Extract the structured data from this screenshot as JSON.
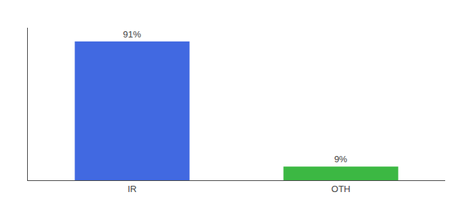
{
  "chart_data": {
    "type": "bar",
    "categories": [
      "IR",
      "OTH"
    ],
    "values": [
      91,
      9
    ],
    "colors": [
      "#4169e1",
      "#3cb843"
    ],
    "value_labels": [
      "91%",
      "9%"
    ],
    "data_labels": true,
    "ylim": [
      0,
      100
    ],
    "tick_labels": "x",
    "grid": false
  }
}
